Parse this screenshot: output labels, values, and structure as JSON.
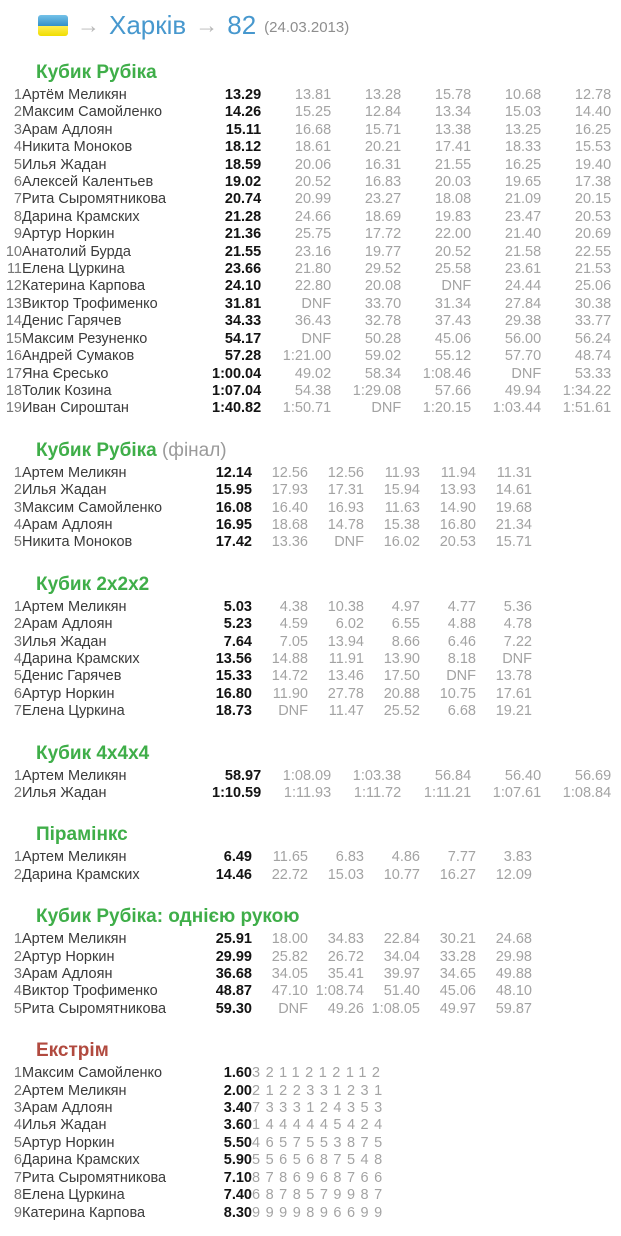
{
  "header": {
    "flag": "ukraine-flag",
    "arrow": "→",
    "city_link": "Харків",
    "competition_link": "82",
    "date": "(24.03.2013)"
  },
  "colors": {
    "section_green": "#3fae49",
    "section_red": "#b14a3f",
    "link_blue": "#4798ce",
    "attempt_gray": "#a3a3a3",
    "best_black": "#131313",
    "name_gray": "#3b3b3b",
    "flag_blue": "#3390c9",
    "flag_yellow": "#f0dd00"
  },
  "sections": [
    {
      "title": "Кубик Рубіка",
      "suffix": "",
      "accent": "green",
      "layout": "wide",
      "rows": [
        {
          "rank": 1,
          "name": "Артём Меликян",
          "best": "13.29",
          "attempts": [
            "13.81",
            "13.28",
            "15.78",
            "10.68",
            "12.78"
          ]
        },
        {
          "rank": 2,
          "name": "Максим Самойленко",
          "best": "14.26",
          "attempts": [
            "15.25",
            "12.84",
            "13.34",
            "15.03",
            "14.40"
          ]
        },
        {
          "rank": 3,
          "name": "Арам Адлоян",
          "best": "15.11",
          "attempts": [
            "16.68",
            "15.71",
            "13.38",
            "13.25",
            "16.25"
          ]
        },
        {
          "rank": 4,
          "name": "Никита Моноков",
          "best": "18.12",
          "attempts": [
            "18.61",
            "20.21",
            "17.41",
            "18.33",
            "15.53"
          ]
        },
        {
          "rank": 5,
          "name": "Илья Жадан",
          "best": "18.59",
          "attempts": [
            "20.06",
            "16.31",
            "21.55",
            "16.25",
            "19.40"
          ]
        },
        {
          "rank": 6,
          "name": "Алексей Калентьев",
          "best": "19.02",
          "attempts": [
            "20.52",
            "16.83",
            "20.03",
            "19.65",
            "17.38"
          ]
        },
        {
          "rank": 7,
          "name": "Рита Сыромятникова",
          "best": "20.74",
          "attempts": [
            "20.99",
            "23.27",
            "18.08",
            "21.09",
            "20.15"
          ]
        },
        {
          "rank": 8,
          "name": "Дарина Крамских",
          "best": "21.28",
          "attempts": [
            "24.66",
            "18.69",
            "19.83",
            "23.47",
            "20.53"
          ]
        },
        {
          "rank": 9,
          "name": "Артур Норкин",
          "best": "21.36",
          "attempts": [
            "25.75",
            "17.72",
            "22.00",
            "21.40",
            "20.69"
          ]
        },
        {
          "rank": 10,
          "name": "Анатолий Бурда",
          "best": "21.55",
          "attempts": [
            "23.16",
            "19.77",
            "20.52",
            "21.58",
            "22.55"
          ]
        },
        {
          "rank": 11,
          "name": "Елена Цуркина",
          "best": "23.66",
          "attempts": [
            "21.80",
            "29.52",
            "25.58",
            "23.61",
            "21.53"
          ]
        },
        {
          "rank": 12,
          "name": "Катерина Карпова",
          "best": "24.10",
          "attempts": [
            "22.80",
            "20.08",
            "DNF",
            "24.44",
            "25.06"
          ]
        },
        {
          "rank": 13,
          "name": "Виктор Трофименко",
          "best": "31.81",
          "attempts": [
            "DNF",
            "33.70",
            "31.34",
            "27.84",
            "30.38"
          ]
        },
        {
          "rank": 14,
          "name": "Денис Гарячев",
          "best": "34.33",
          "attempts": [
            "36.43",
            "32.78",
            "37.43",
            "29.38",
            "33.77"
          ]
        },
        {
          "rank": 15,
          "name": "Максим Резуненко",
          "best": "54.17",
          "attempts": [
            "DNF",
            "50.28",
            "45.06",
            "56.00",
            "56.24"
          ]
        },
        {
          "rank": 16,
          "name": "Андрей Сумаков",
          "best": "57.28",
          "attempts": [
            "1:21.00",
            "59.02",
            "55.12",
            "57.70",
            "48.74"
          ]
        },
        {
          "rank": 17,
          "name": "Яна Єресько",
          "best": "1:00.04",
          "attempts": [
            "49.02",
            "58.34",
            "1:08.46",
            "DNF",
            "53.33"
          ]
        },
        {
          "rank": 18,
          "name": "Толик Козина",
          "best": "1:07.04",
          "attempts": [
            "54.38",
            "1:29.08",
            "57.66",
            "49.94",
            "1:34.22"
          ]
        },
        {
          "rank": 19,
          "name": "Иван Сироштан",
          "best": "1:40.82",
          "attempts": [
            "1:50.71",
            "DNF",
            "1:20.15",
            "1:03.44",
            "1:51.61"
          ]
        }
      ]
    },
    {
      "title": "Кубик Рубіка",
      "suffix": " (фінал)",
      "accent": "green",
      "layout": "mid",
      "rows": [
        {
          "rank": 1,
          "name": "Артем Меликян",
          "best": "12.14",
          "attempts": [
            "12.56",
            "12.56",
            "11.93",
            "11.94",
            "11.31"
          ]
        },
        {
          "rank": 2,
          "name": "Илья Жадан",
          "best": "15.95",
          "attempts": [
            "17.93",
            "17.31",
            "15.94",
            "13.93",
            "14.61"
          ]
        },
        {
          "rank": 3,
          "name": "Максим Самойленко",
          "best": "16.08",
          "attempts": [
            "16.40",
            "16.93",
            "11.63",
            "14.90",
            "19.68"
          ]
        },
        {
          "rank": 4,
          "name": "Арам Адлоян",
          "best": "16.95",
          "attempts": [
            "18.68",
            "14.78",
            "15.38",
            "16.80",
            "21.34"
          ]
        },
        {
          "rank": 5,
          "name": "Никита Моноков",
          "best": "17.42",
          "attempts": [
            "13.36",
            "DNF",
            "16.02",
            "20.53",
            "15.71"
          ]
        }
      ]
    },
    {
      "title": "Кубик 2х2х2",
      "suffix": "",
      "accent": "green",
      "layout": "mid",
      "rows": [
        {
          "rank": 1,
          "name": "Артем Меликян",
          "best": "5.03",
          "attempts": [
            "4.38",
            "10.38",
            "4.97",
            "4.77",
            "5.36"
          ]
        },
        {
          "rank": 2,
          "name": "Арам Адлоян",
          "best": "5.23",
          "attempts": [
            "4.59",
            "6.02",
            "6.55",
            "4.88",
            "4.78"
          ]
        },
        {
          "rank": 3,
          "name": "Илья Жадан",
          "best": "7.64",
          "attempts": [
            "7.05",
            "13.94",
            "8.66",
            "6.46",
            "7.22"
          ]
        },
        {
          "rank": 4,
          "name": "Дарина Крамских",
          "best": "13.56",
          "attempts": [
            "14.88",
            "11.91",
            "13.90",
            "8.18",
            "DNF"
          ]
        },
        {
          "rank": 5,
          "name": "Денис Гарячев",
          "best": "15.33",
          "attempts": [
            "14.72",
            "13.46",
            "17.50",
            "DNF",
            "13.78"
          ]
        },
        {
          "rank": 6,
          "name": "Артур Норкин",
          "best": "16.80",
          "attempts": [
            "11.90",
            "27.78",
            "20.88",
            "10.75",
            "17.61"
          ]
        },
        {
          "rank": 7,
          "name": "Елена Цуркина",
          "best": "18.73",
          "attempts": [
            "DNF",
            "11.47",
            "25.52",
            "6.68",
            "19.21"
          ]
        }
      ]
    },
    {
      "title": "Кубик 4х4х4",
      "suffix": "",
      "accent": "green",
      "layout": "wide",
      "rows": [
        {
          "rank": 1,
          "name": "Артем Меликян",
          "best": "58.97",
          "attempts": [
            "1:08.09",
            "1:03.38",
            "56.84",
            "56.40",
            "56.69"
          ]
        },
        {
          "rank": 2,
          "name": "Илья Жадан",
          "best": "1:10.59",
          "attempts": [
            "1:11.93",
            "1:11.72",
            "1:11.21",
            "1:07.61",
            "1:08.84"
          ]
        }
      ]
    },
    {
      "title": "Пірамінкс",
      "suffix": "",
      "accent": "green",
      "layout": "mid",
      "rows": [
        {
          "rank": 1,
          "name": "Артем Меликян",
          "best": "6.49",
          "attempts": [
            "11.65",
            "6.83",
            "4.86",
            "7.77",
            "3.83"
          ]
        },
        {
          "rank": 2,
          "name": "Дарина Крамских",
          "best": "14.46",
          "attempts": [
            "22.72",
            "15.03",
            "10.77",
            "16.27",
            "12.09"
          ]
        }
      ]
    },
    {
      "title": "Кубик Рубіка: однією рукою",
      "suffix": "",
      "accent": "green",
      "layout": "mid",
      "rows": [
        {
          "rank": 1,
          "name": "Артем Меликян",
          "best": "25.91",
          "attempts": [
            "18.00",
            "34.83",
            "22.84",
            "30.21",
            "24.68"
          ]
        },
        {
          "rank": 2,
          "name": "Артур Норкин",
          "best": "29.99",
          "attempts": [
            "25.82",
            "26.72",
            "34.04",
            "33.28",
            "29.98"
          ]
        },
        {
          "rank": 3,
          "name": "Арам Адлоян",
          "best": "36.68",
          "attempts": [
            "34.05",
            "35.41",
            "39.97",
            "34.65",
            "49.88"
          ]
        },
        {
          "rank": 4,
          "name": "Виктор Трофименко",
          "best": "48.87",
          "attempts": [
            "47.10",
            "1:08.74",
            "51.40",
            "45.06",
            "48.10"
          ]
        },
        {
          "rank": 5,
          "name": "Рита Сыромятникова",
          "best": "59.30",
          "attempts": [
            "DNF",
            "49.26",
            "1:08.05",
            "49.97",
            "59.87"
          ]
        }
      ]
    },
    {
      "title": "Екстрім",
      "suffix": "",
      "accent": "red",
      "layout": "extreme",
      "rows": [
        {
          "rank": 1,
          "name": "Максим Самойленко",
          "best": "1.60",
          "attempts": [
            "3",
            "2",
            "1",
            "1",
            "2",
            "1",
            "2",
            "1",
            "1",
            "2"
          ]
        },
        {
          "rank": 2,
          "name": "Артем Меликян",
          "best": "2.00",
          "attempts": [
            "2",
            "1",
            "2",
            "2",
            "3",
            "3",
            "1",
            "2",
            "3",
            "1"
          ]
        },
        {
          "rank": 3,
          "name": "Арам Адлоян",
          "best": "3.40",
          "attempts": [
            "7",
            "3",
            "3",
            "3",
            "1",
            "2",
            "4",
            "3",
            "5",
            "3"
          ]
        },
        {
          "rank": 4,
          "name": "Илья Жадан",
          "best": "3.60",
          "attempts": [
            "1",
            "4",
            "4",
            "4",
            "4",
            "4",
            "5",
            "4",
            "2",
            "4"
          ]
        },
        {
          "rank": 5,
          "name": "Артур Норкин",
          "best": "5.50",
          "attempts": [
            "4",
            "6",
            "5",
            "7",
            "5",
            "5",
            "3",
            "8",
            "7",
            "5"
          ]
        },
        {
          "rank": 6,
          "name": "Дарина Крамских",
          "best": "5.90",
          "attempts": [
            "5",
            "5",
            "6",
            "5",
            "6",
            "8",
            "7",
            "5",
            "4",
            "8"
          ]
        },
        {
          "rank": 7,
          "name": "Рита Сыромятникова",
          "best": "7.10",
          "attempts": [
            "8",
            "7",
            "8",
            "6",
            "9",
            "6",
            "8",
            "7",
            "6",
            "6"
          ]
        },
        {
          "rank": 8,
          "name": "Елена Цуркина",
          "best": "7.40",
          "attempts": [
            "6",
            "8",
            "7",
            "8",
            "5",
            "7",
            "9",
            "9",
            "8",
            "7"
          ]
        },
        {
          "rank": 9,
          "name": "Катерина Карпова",
          "best": "8.30",
          "attempts": [
            "9",
            "9",
            "9",
            "9",
            "8",
            "9",
            "6",
            "6",
            "9",
            "9"
          ]
        }
      ]
    }
  ]
}
